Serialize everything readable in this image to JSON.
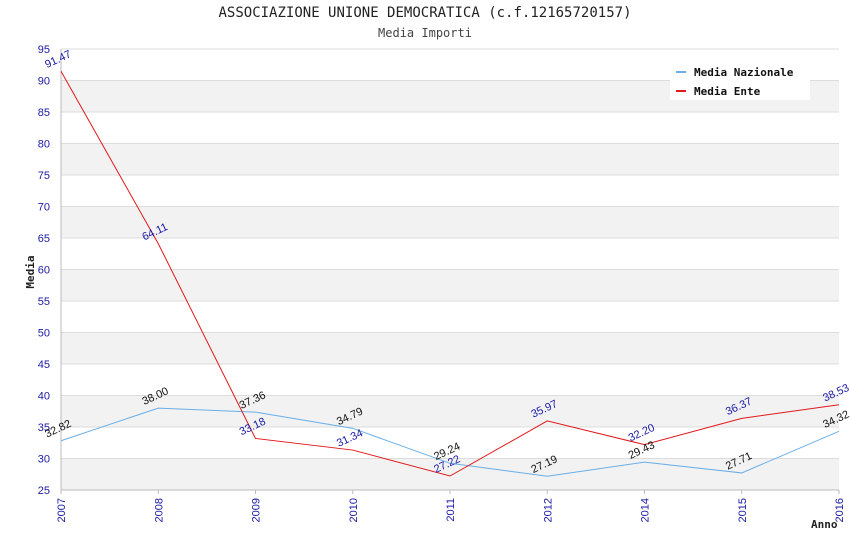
{
  "title": "ASSOCIAZIONE UNIONE DEMOCRATICA (c.f.12165720157)",
  "subtitle": "Media Importi",
  "chart_data": {
    "type": "line",
    "title": "ASSOCIAZIONE UNIONE DEMOCRATICA (c.f.12165720157)",
    "subtitle": "Media Importi",
    "xlabel": "Anno",
    "ylabel": "Media",
    "categories": [
      "2007",
      "2008",
      "2009",
      "2010",
      "2011",
      "2012",
      "2014",
      "2015",
      "2016"
    ],
    "ylim": [
      25,
      95
    ],
    "yticks": [
      25,
      30,
      35,
      40,
      45,
      50,
      55,
      60,
      65,
      70,
      75,
      80,
      85,
      90,
      95
    ],
    "grid": true,
    "legend_position": "top-right",
    "series": [
      {
        "name": "Media Nazionale",
        "color": "#6aaee6",
        "label_color": "#111111",
        "values": [
          32.82,
          38.0,
          37.36,
          34.79,
          29.24,
          27.19,
          29.43,
          27.71,
          34.32
        ],
        "labels": [
          "32.82",
          "38.00",
          "37.36",
          "34.79",
          "29.24",
          "27.19",
          "29.43",
          "27.71",
          "34.32"
        ]
      },
      {
        "name": "Media Ente",
        "color": "#e0191a",
        "label_color": "#1a1aa6",
        "values": [
          91.47,
          64.11,
          33.18,
          31.34,
          27.22,
          35.97,
          32.2,
          36.37,
          38.53
        ],
        "labels": [
          "91.47",
          "64.11",
          "33.18",
          "31.34",
          "27.22",
          "35.97",
          "32.20",
          "36.37",
          "38.53"
        ]
      }
    ]
  }
}
